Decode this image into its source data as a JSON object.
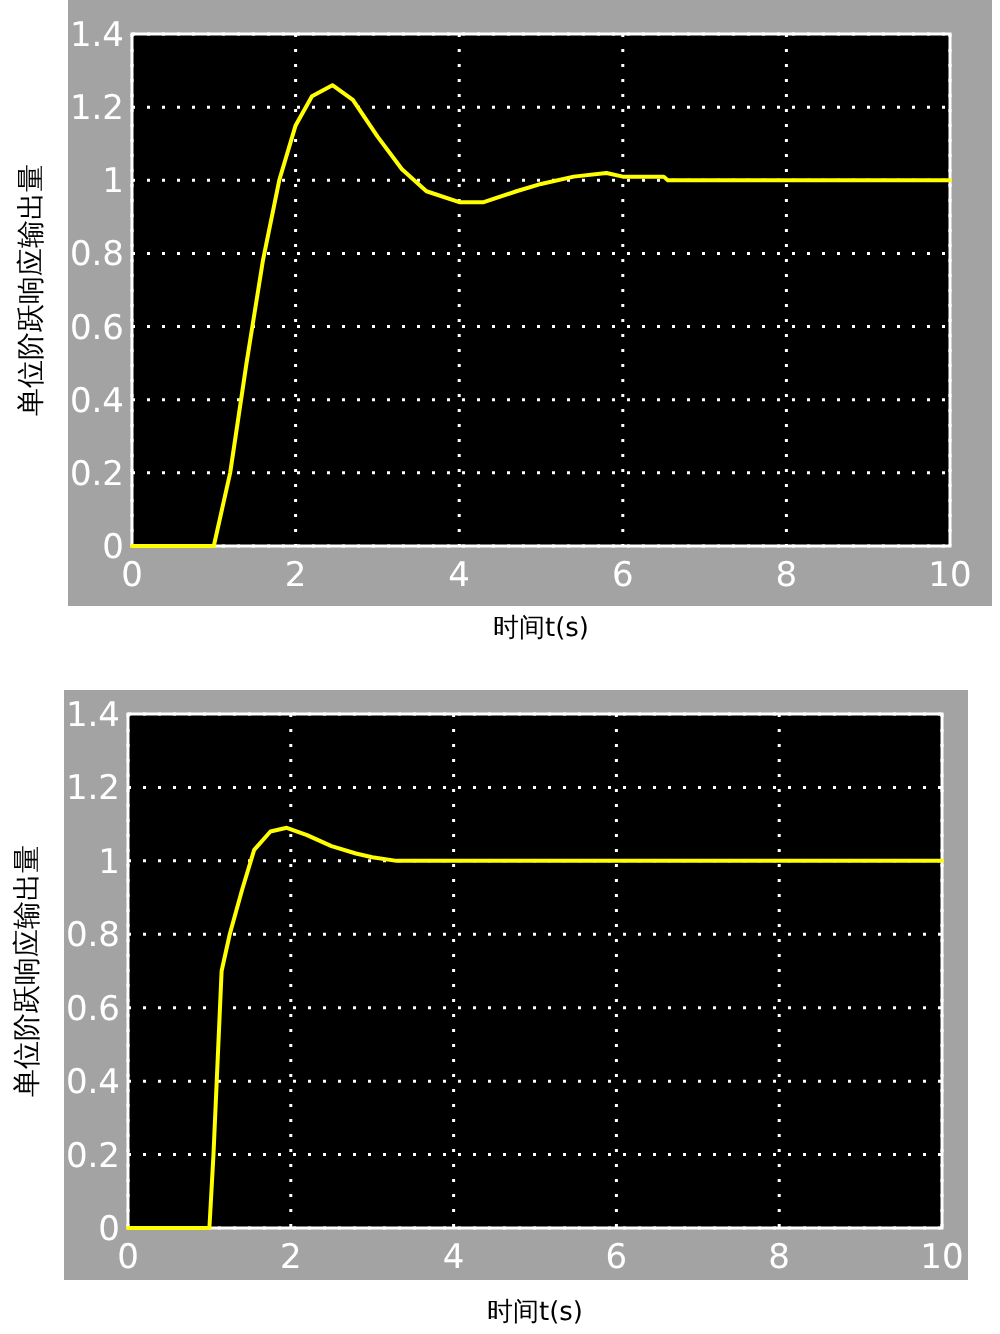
{
  "chart_data": [
    {
      "type": "line",
      "xlabel": "时间t(s)",
      "ylabel": "单位阶跃响应输出量",
      "xlim": [
        0,
        10
      ],
      "ylim": [
        0,
        1.4
      ],
      "xticks": [
        0,
        2,
        4,
        6,
        8,
        10
      ],
      "yticks": [
        0,
        0.2,
        0.4,
        0.6,
        0.8,
        1,
        1.2,
        1.4
      ],
      "grid": true,
      "line_style": "solid",
      "series": [
        {
          "color": "#ffff00",
          "x": [
            0,
            1,
            1.2,
            1.4,
            1.6,
            1.8,
            2.0,
            2.2,
            2.45,
            2.7,
            3.0,
            3.3,
            3.6,
            4.0,
            4.3,
            4.7,
            5.0,
            5.4,
            5.8,
            6.0,
            6.5,
            6.55,
            10
          ],
          "values": [
            0,
            0,
            0.2,
            0.5,
            0.78,
            1.0,
            1.15,
            1.23,
            1.26,
            1.22,
            1.12,
            1.03,
            0.97,
            0.94,
            0.94,
            0.97,
            0.99,
            1.01,
            1.02,
            1.01,
            1.01,
            1.0,
            1.0
          ]
        }
      ]
    },
    {
      "type": "line",
      "xlabel": "时间t(s)",
      "ylabel": "单位阶跃响应输出量",
      "xlim": [
        0,
        10
      ],
      "ylim": [
        0,
        1.4
      ],
      "xticks": [
        0,
        2,
        4,
        6,
        8,
        10
      ],
      "yticks": [
        0,
        0.2,
        0.4,
        0.6,
        0.8,
        1,
        1.2,
        1.4
      ],
      "grid": true,
      "line_style": "solid",
      "series": [
        {
          "color": "#ffff00",
          "x": [
            0,
            1,
            1.05,
            1.1,
            1.15,
            1.25,
            1.4,
            1.55,
            1.75,
            1.95,
            2.2,
            2.5,
            2.8,
            3.0,
            3.3,
            10
          ],
          "values": [
            0,
            0,
            0.2,
            0.45,
            0.7,
            0.8,
            0.92,
            1.03,
            1.08,
            1.09,
            1.07,
            1.04,
            1.02,
            1.01,
            1.0,
            1.0
          ]
        }
      ]
    }
  ]
}
